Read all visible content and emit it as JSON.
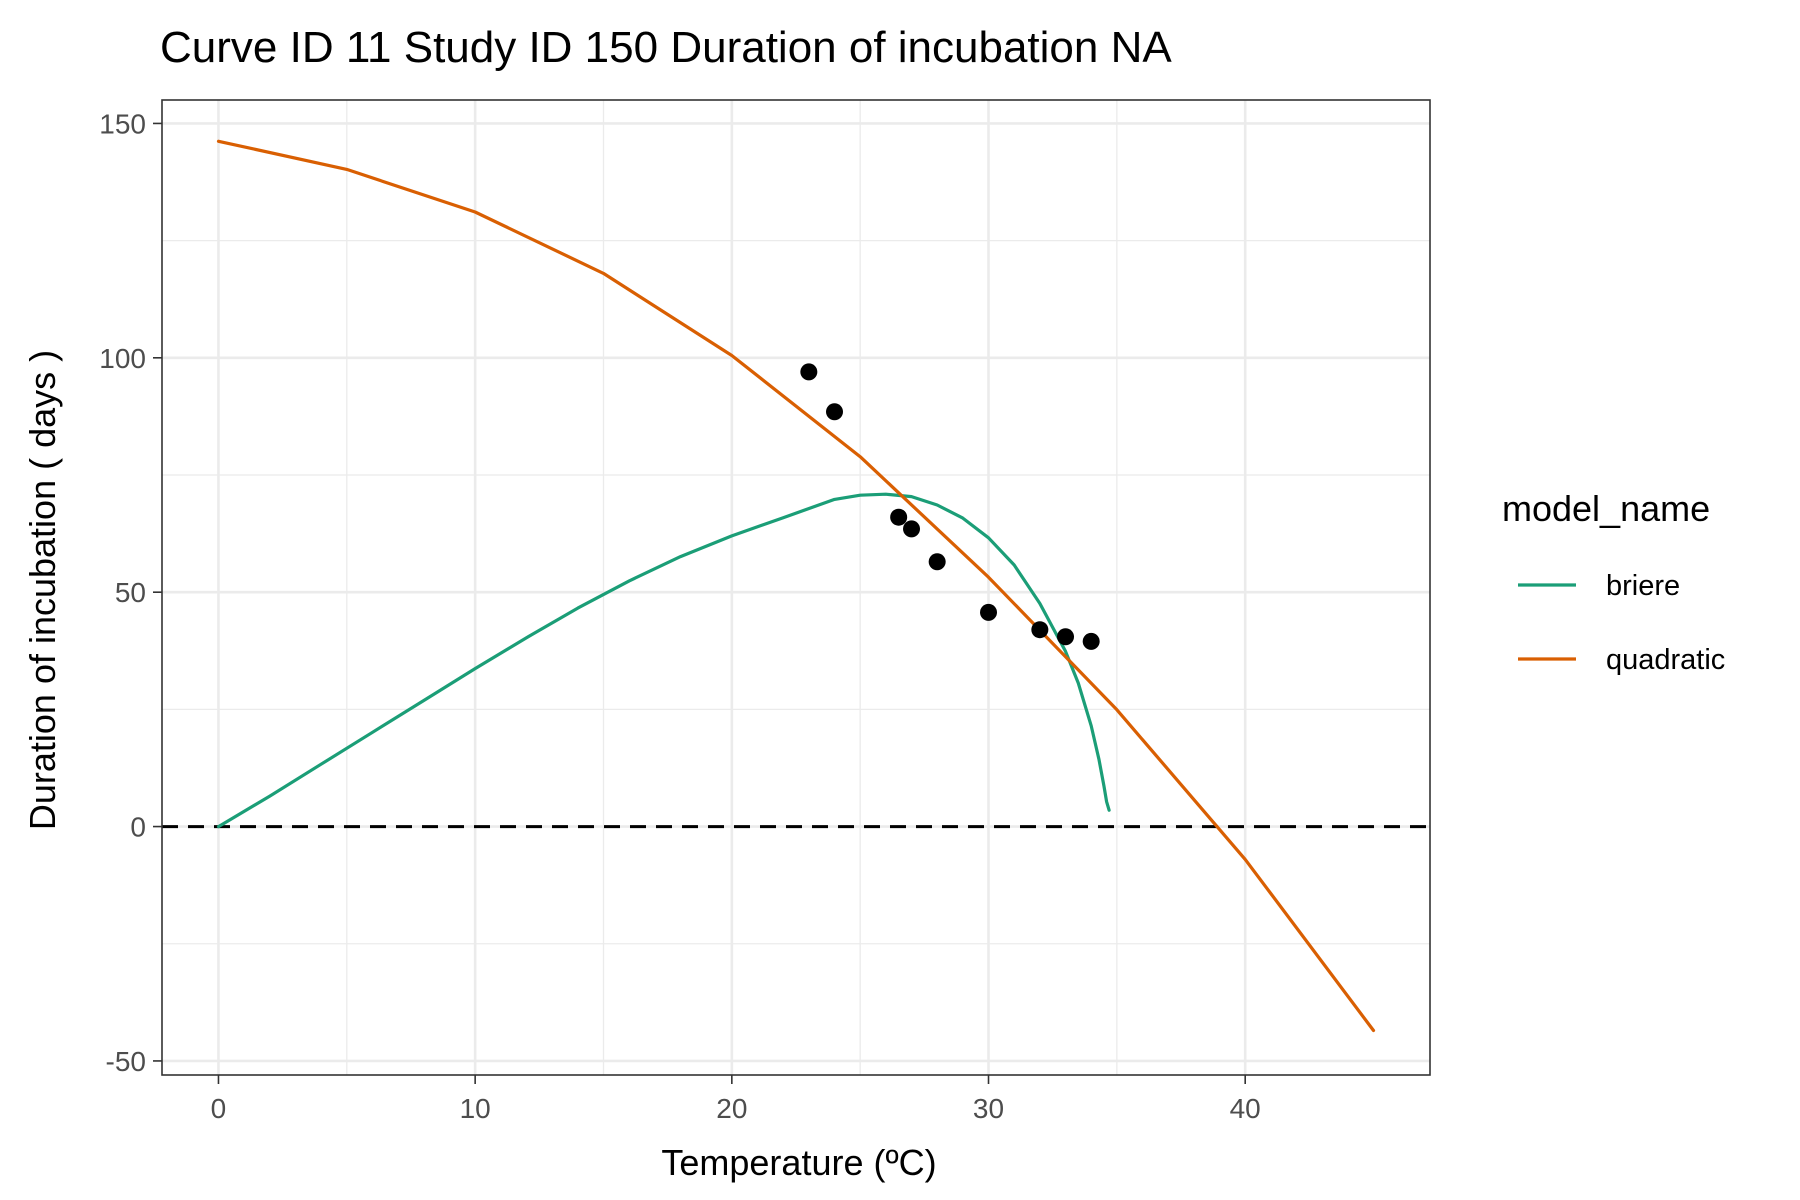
{
  "chart_data": {
    "type": "line",
    "title": "Curve ID 11 Study ID 150 Duration of incubation NA",
    "xlabel": "Temperature (ºC)",
    "ylabel": "Duration of incubation ( days )",
    "xlim": [
      -2.2,
      47.2
    ],
    "ylim": [
      -53,
      155
    ],
    "xticks": [
      0,
      10,
      20,
      30,
      40
    ],
    "yticks": [
      -50,
      0,
      50,
      100,
      150
    ],
    "xtick_labels": [
      "0",
      "10",
      "20",
      "30",
      "40"
    ],
    "ytick_labels": [
      "-50",
      "0",
      "50",
      "100",
      "150"
    ],
    "grid": true,
    "reference_line": {
      "y": 0,
      "style": "dashed"
    },
    "legend": {
      "title": "model_name",
      "position": "right"
    },
    "series": [
      {
        "name": "briere",
        "color": "#1b9e77",
        "x": [
          0,
          2,
          4,
          6,
          8,
          10,
          12,
          14,
          16,
          18,
          20,
          22,
          24,
          25,
          26,
          27,
          28,
          29,
          30,
          31,
          32,
          33,
          33.5,
          34,
          34.3,
          34.5,
          34.6,
          34.7
        ],
        "y": [
          0,
          6.5,
          13.3,
          20.1,
          26.9,
          33.7,
          40.3,
          46.6,
          52.4,
          57.6,
          62.0,
          65.9,
          69.8,
          70.7,
          70.9,
          70.4,
          68.6,
          65.8,
          61.6,
          55.8,
          47.6,
          37.4,
          30.6,
          21.5,
          14.4,
          8.6,
          5.3,
          3.5
        ]
      },
      {
        "name": "quadratic",
        "color": "#d95f02",
        "x": [
          0,
          5,
          10,
          15,
          20,
          25,
          30,
          35,
          40,
          45
        ],
        "y": [
          146.2,
          140.2,
          131.1,
          118.0,
          100.5,
          78.9,
          53.2,
          24.9,
          -7.0,
          -43.5
        ]
      }
    ],
    "points": {
      "color": "#000000",
      "x": [
        23,
        24,
        26.5,
        27,
        28,
        30,
        32,
        33,
        34
      ],
      "y": [
        97,
        88.5,
        66,
        63.5,
        56.5,
        45.7,
        42,
        40.5,
        39.5
      ]
    }
  }
}
